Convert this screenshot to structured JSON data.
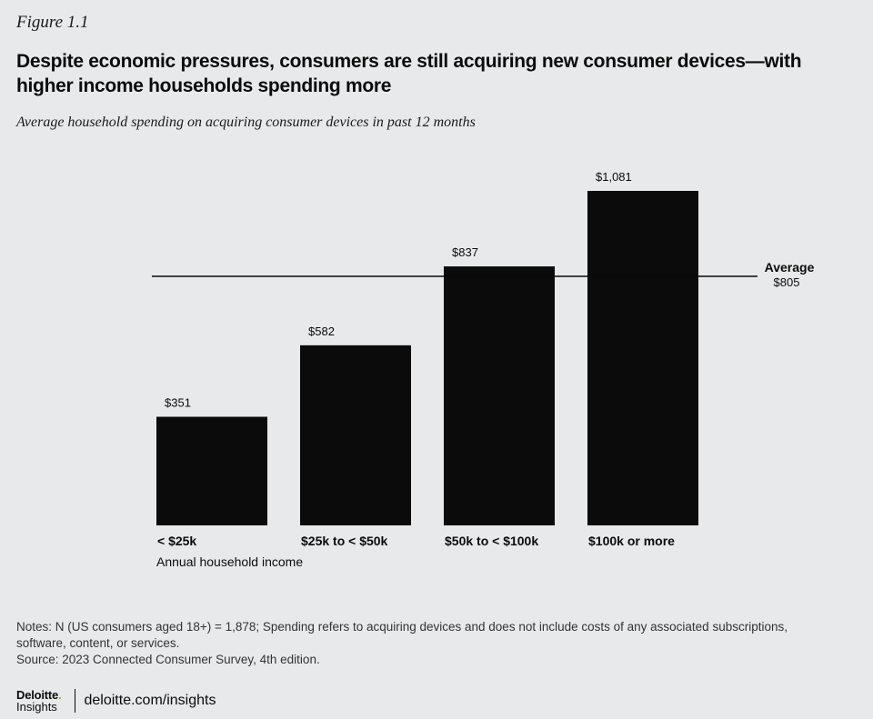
{
  "figure_label": "Figure 1.1",
  "title": "Despite economic pressures, consumers are still acquiring new consumer devices—with higher  income households spending more",
  "subtitle": "Average household spending on acquiring consumer devices in past 12 months",
  "chart_data": {
    "type": "bar",
    "categories": [
      "< $25k",
      "$25k to < $50k",
      "$50k to < $100k",
      "$100k or more"
    ],
    "values": [
      351,
      582,
      837,
      1081
    ],
    "value_labels": [
      "$351",
      "$582",
      "$837",
      "$1,081"
    ],
    "xlabel": "Annual household income",
    "ylabel": "",
    "ylim": [
      0,
      1081
    ],
    "grid": false,
    "bar_color": "#0b0b0b",
    "reference_line": {
      "label": "Average",
      "value": 805,
      "value_label": "$805"
    }
  },
  "notes": {
    "line1": "Notes: N (US consumers aged 18+) = 1,878; Spending refers to acquiring devices and does not include costs of any associated subscriptions, software, content, or services.",
    "line2": "Source: 2023 Connected Consumer Survey, 4th edition."
  },
  "footer": {
    "logo_main": "Deloitte",
    "logo_dot": ".",
    "logo_sub": "Insights",
    "url": "deloitte.com/insights"
  },
  "colors": {
    "background": "#e8e9ea",
    "bar": "#0b0b0b",
    "logo_dot": "#86bc25"
  }
}
